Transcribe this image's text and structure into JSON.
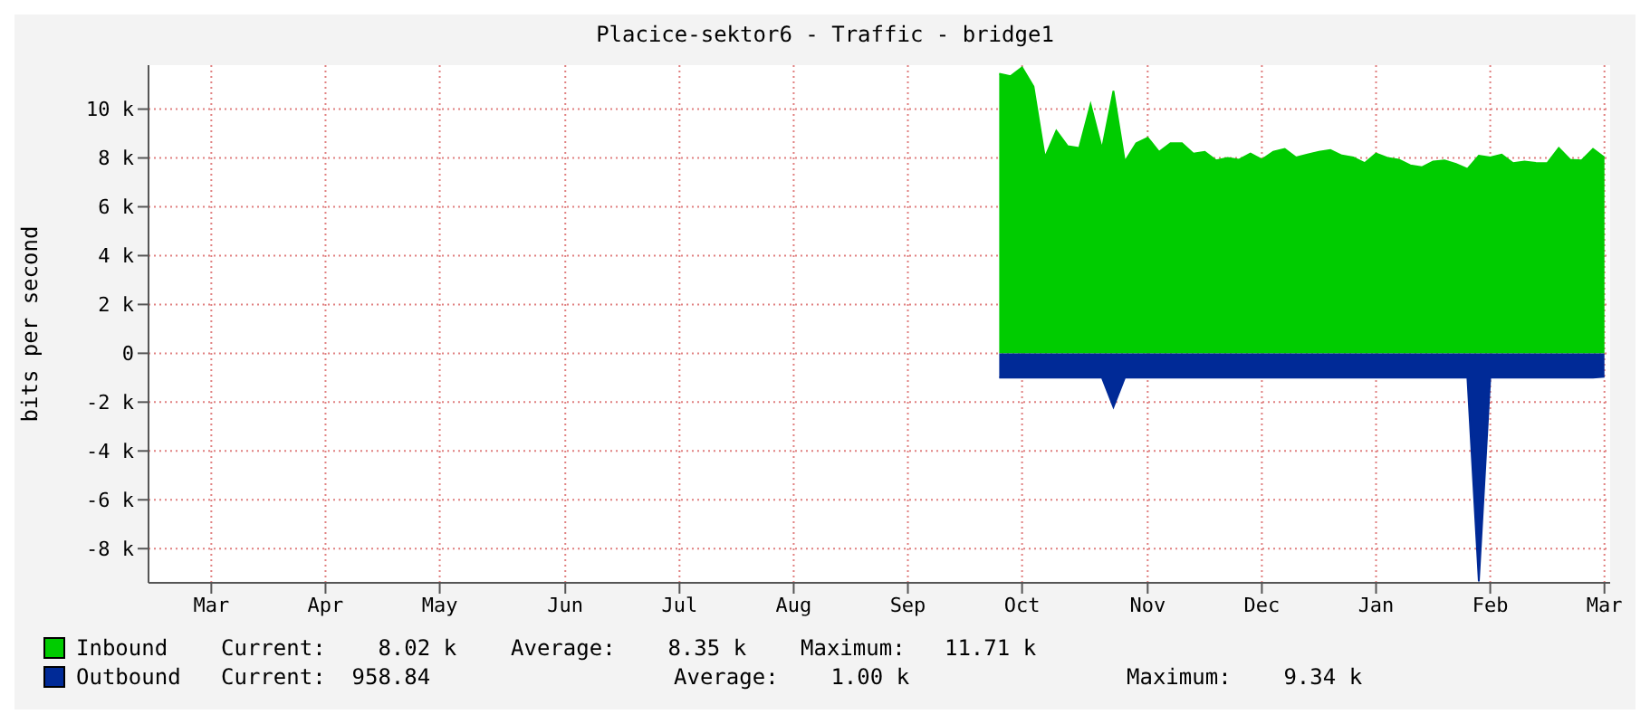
{
  "chart_data": {
    "type": "area",
    "title": "Placice-sektor6 - Traffic - bridge1",
    "ylabel": "bits per second",
    "categories": [
      null,
      null,
      null,
      null,
      null,
      "Mar",
      null,
      null,
      null,
      null,
      null,
      null,
      null,
      null,
      null,
      "Apr",
      null,
      null,
      null,
      null,
      null,
      null,
      null,
      null,
      null,
      "May",
      null,
      null,
      null,
      null,
      null,
      null,
      null,
      null,
      null,
      null,
      "Jun",
      null,
      null,
      null,
      null,
      null,
      null,
      null,
      null,
      null,
      "Jul",
      null,
      null,
      null,
      null,
      null,
      null,
      null,
      null,
      null,
      "Aug",
      null,
      null,
      null,
      null,
      null,
      null,
      null,
      null,
      null,
      "Sep",
      null,
      null,
      null,
      null,
      null,
      null,
      null,
      null,
      null,
      "Oct",
      null,
      null,
      null,
      null,
      null,
      null,
      null,
      null,
      null,
      null,
      "Nov",
      null,
      null,
      null,
      null,
      null,
      null,
      null,
      null,
      null,
      "Dec",
      null,
      null,
      null,
      null,
      null,
      null,
      null,
      null,
      null,
      "Jan",
      null,
      null,
      null,
      null,
      null,
      null,
      null,
      null,
      null,
      "Feb",
      null,
      null,
      null,
      null,
      null,
      null,
      null,
      null,
      null,
      "Mar"
    ],
    "ylim": [
      -9400,
      11800
    ],
    "yticks": [
      {
        "value": -8000,
        "label": "-8 k"
      },
      {
        "value": -6000,
        "label": "-6 k"
      },
      {
        "value": -4000,
        "label": "-4 k"
      },
      {
        "value": -2000,
        "label": "-2 k"
      },
      0,
      {
        "value": 2000,
        "label": "2 k"
      },
      {
        "value": 4000,
        "label": "4 k"
      },
      {
        "value": 6000,
        "label": "6 k"
      },
      {
        "value": 8000,
        "label": "8 k"
      },
      {
        "value": 10000,
        "label": "10 k"
      }
    ],
    "grid": true,
    "legend": "bottom",
    "series": [
      {
        "name": "Inbound",
        "color": "#00cc00",
        "values": [
          null,
          null,
          null,
          null,
          null,
          null,
          null,
          null,
          null,
          null,
          null,
          null,
          null,
          null,
          null,
          null,
          null,
          null,
          null,
          null,
          null,
          null,
          null,
          null,
          null,
          null,
          null,
          null,
          null,
          null,
          null,
          null,
          null,
          null,
          null,
          null,
          null,
          null,
          null,
          null,
          null,
          null,
          null,
          null,
          null,
          null,
          null,
          null,
          null,
          null,
          null,
          null,
          null,
          null,
          null,
          null,
          null,
          null,
          null,
          null,
          null,
          null,
          null,
          null,
          null,
          null,
          null,
          null,
          null,
          null,
          null,
          null,
          null,
          null,
          11450,
          11350,
          11710,
          10930,
          8020,
          9110,
          8480,
          8410,
          10190,
          8370,
          10750,
          7850,
          8600,
          8830,
          8250,
          8600,
          8600,
          8180,
          8250,
          7900,
          8000,
          7930,
          8180,
          7930,
          8250,
          8370,
          8020,
          8140,
          8250,
          8320,
          8100,
          8020,
          7790,
          8180,
          8000,
          7930,
          7700,
          7620,
          7850,
          7900,
          7750,
          7550,
          8090,
          8020,
          8140,
          7790,
          7850,
          7800,
          7790,
          8410,
          7930,
          7900,
          8370,
          8020
        ]
      },
      {
        "name": "Outbound",
        "color": "#002a97",
        "values": [
          null,
          null,
          null,
          null,
          null,
          null,
          null,
          null,
          null,
          null,
          null,
          null,
          null,
          null,
          null,
          null,
          null,
          null,
          null,
          null,
          null,
          null,
          null,
          null,
          null,
          null,
          null,
          null,
          null,
          null,
          null,
          null,
          null,
          null,
          null,
          null,
          null,
          null,
          null,
          null,
          null,
          null,
          null,
          null,
          null,
          null,
          null,
          null,
          null,
          null,
          null,
          null,
          null,
          null,
          null,
          null,
          null,
          null,
          null,
          null,
          null,
          null,
          null,
          null,
          null,
          null,
          null,
          null,
          null,
          null,
          null,
          null,
          null,
          null,
          -1000,
          -1000,
          -1000,
          -1000,
          -1000,
          -1000,
          -1000,
          -1000,
          -1000,
          -1000,
          -2200,
          -1000,
          -1000,
          -1000,
          -1000,
          -1000,
          -1000,
          -1000,
          -1000,
          -1000,
          -1000,
          -1000,
          -1000,
          -1000,
          -1000,
          -1000,
          -1000,
          -1000,
          -1000,
          -1000,
          -1000,
          -1000,
          -1000,
          -1000,
          -1000,
          -1000,
          -1000,
          -1000,
          -1000,
          -1000,
          -1000,
          -1000,
          -9340,
          -1000,
          -1000,
          -1000,
          -1000,
          -1000,
          -1000,
          -1000,
          -1000,
          -1000,
          -1000,
          -960
        ]
      }
    ],
    "annotations": [
      "Current:    8.02 k",
      "Average:    8.35 k",
      "Maximum:   11.71 k",
      "Current:  958.84",
      "Average:    1.00 k",
      "Maximum:    9.34 k"
    ]
  }
}
